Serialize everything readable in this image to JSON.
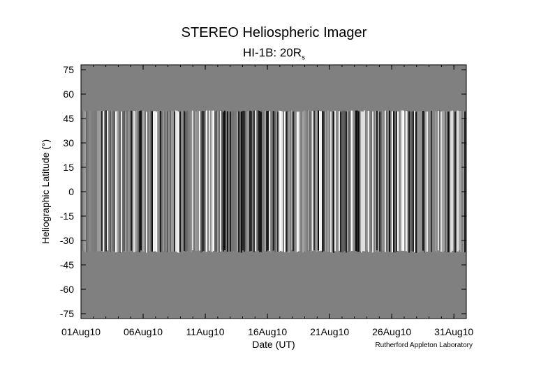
{
  "chart_data": {
    "type": "heatmap",
    "title": "STEREO Heliospheric Imager",
    "subtitle_main": "HI-1B: 20R",
    "subtitle_sub": "s",
    "xlabel": "Date (UT)",
    "ylabel": "Heliographic Latitude (°)",
    "credit": "Rutherford Appleton Laboratory",
    "x_tick_labels": [
      "01Aug10",
      "06Aug10",
      "11Aug10",
      "16Aug10",
      "21Aug10",
      "26Aug10",
      "31Aug10"
    ],
    "x_tick_days": [
      1,
      6,
      11,
      16,
      21,
      26,
      31
    ],
    "xlim_days": [
      1,
      32
    ],
    "y_ticks": [
      75,
      60,
      45,
      30,
      15,
      0,
      -15,
      -30,
      -45,
      -60,
      -75
    ],
    "ylim": [
      -78,
      78
    ],
    "data_lat_range": [
      -37,
      50
    ],
    "background_color": "#808080",
    "colormap": "grayscale"
  }
}
